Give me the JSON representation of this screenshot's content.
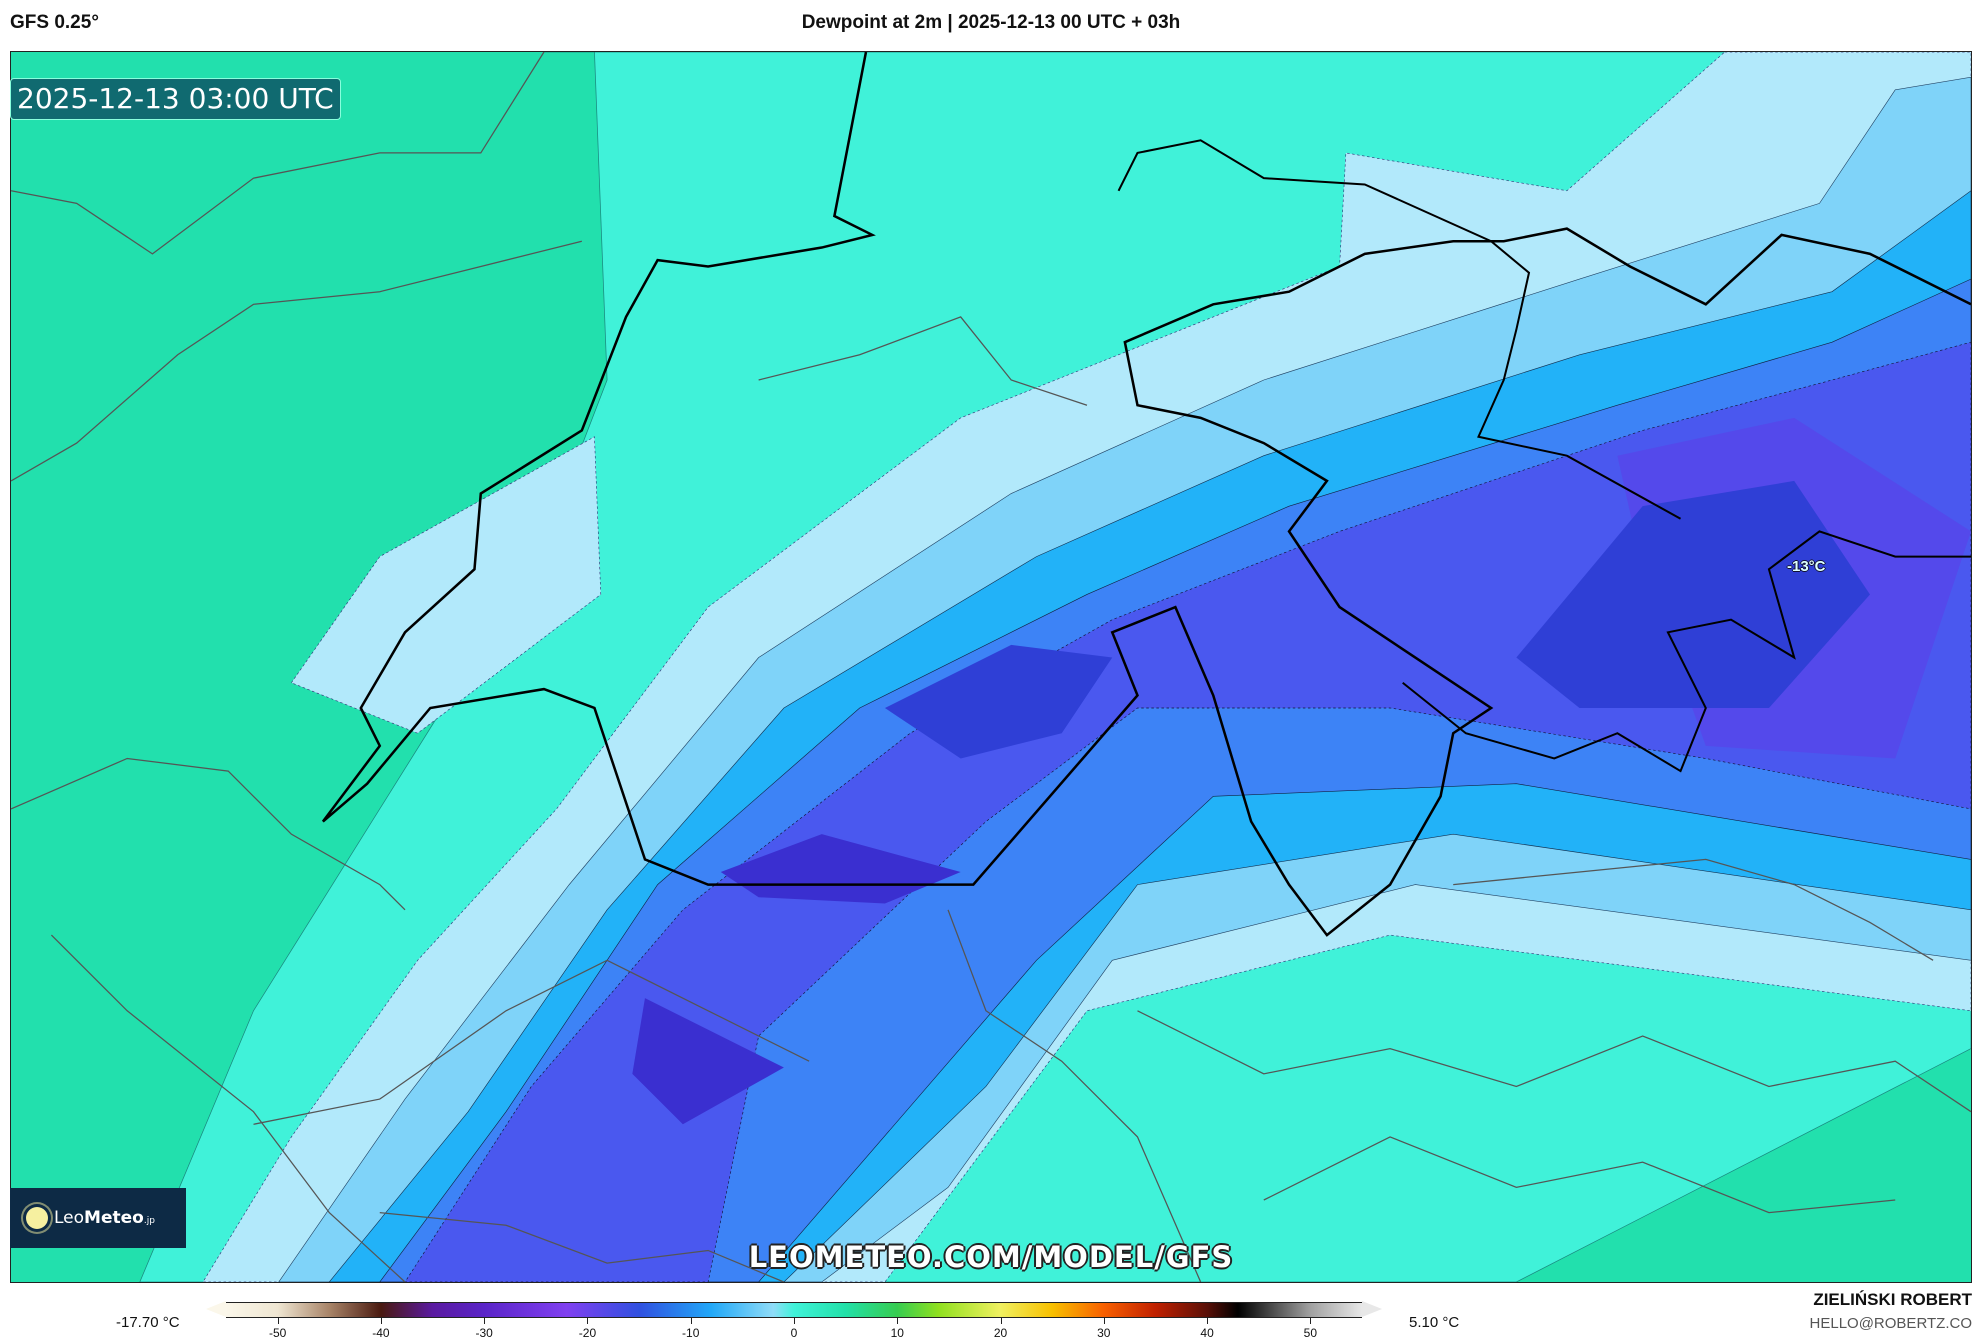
{
  "header": {
    "model": "GFS 0.25°",
    "title": "Dewpoint at 2m | 2025-12-13 00 UTC + 03h"
  },
  "map": {
    "valid_time": "2025-12-13 03:00 UTC",
    "contour_label": "-13°C",
    "watermark": "LEOMETEO.COM/MODEL/GFS",
    "logo_text": "LeoMeteo.jp",
    "band_colors": [
      "#22e0ad",
      "#40f2d9",
      "#b2e9fb",
      "#7fd3f9",
      "#22b2f8",
      "#3d83f6",
      "#4a58ef",
      "#2f3fd6",
      "#5b3fe8"
    ]
  },
  "colorbar": {
    "min_label": "-17.70 °C",
    "max_label": "5.10 °C",
    "range": [
      -55,
      55
    ],
    "ticks": [
      "-50",
      "-40",
      "-30",
      "-20",
      "-10",
      "0",
      "10",
      "20",
      "30",
      "40",
      "50"
    ]
  },
  "credits": {
    "author": "ZIELIŃSKI ROBERT",
    "email": "HELLO@ROBERTZ.CO"
  }
}
